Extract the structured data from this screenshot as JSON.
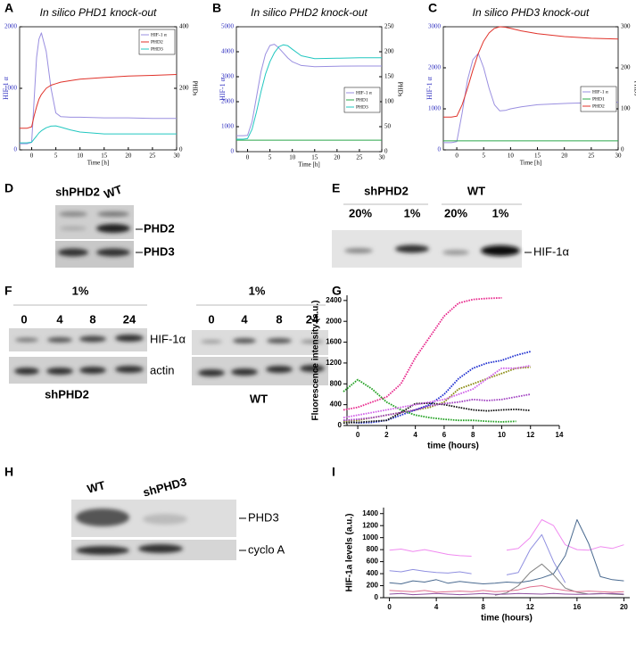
{
  "chart_data": [
    {
      "panel": "A",
      "type": "line",
      "title": "In silico PHD1 knock-out",
      "x_label": "Time [h]",
      "y_label": "HIF-1 α",
      "y2_label": "PHDs",
      "x": [
        -2.5,
        -1,
        0,
        0.5,
        1,
        1.5,
        2,
        3,
        4,
        5,
        6,
        8,
        10,
        15,
        20,
        25,
        30
      ],
      "xlim": [
        -2.5,
        30
      ],
      "xticks": [
        0,
        5,
        10,
        15,
        20,
        25,
        30
      ],
      "ylim": [
        0,
        2000
      ],
      "yticks": [
        0,
        1000,
        2000
      ],
      "y2lim": [
        0,
        400
      ],
      "y2ticks": [
        0,
        200,
        400
      ],
      "legend": "upper right",
      "series": [
        {
          "name": "HIF-1 α",
          "color": "#9a8fe0",
          "values": [
            100,
            100,
            120,
            800,
            1500,
            1800,
            1900,
            1600,
            1000,
            600,
            540,
            530,
            530,
            520,
            520,
            510,
            510
          ]
        },
        {
          "name": "PHD2",
          "color": "#e0322a",
          "axis": "y2",
          "values": [
            70,
            70,
            75,
            110,
            140,
            165,
            180,
            200,
            210,
            215,
            220,
            225,
            230,
            235,
            240,
            242,
            245
          ]
        },
        {
          "name": "PHD3",
          "color": "#22c7c0",
          "axis": "y2",
          "values": [
            23,
            23,
            25,
            35,
            45,
            55,
            62,
            72,
            77,
            78,
            74,
            65,
            58,
            52,
            52,
            52,
            52
          ]
        }
      ]
    },
    {
      "panel": "B",
      "type": "line",
      "title": "In silico PHD2 knock-out",
      "x_label": "Time [h]",
      "y_label": "HIF-1 α",
      "y2_label": "PHDs",
      "x": [
        -2.5,
        -1,
        0,
        1,
        2,
        3,
        4,
        5,
        6,
        7,
        8,
        9,
        10,
        12,
        15,
        20,
        25,
        30
      ],
      "xlim": [
        -2.5,
        30
      ],
      "xticks": [
        0,
        5,
        10,
        15,
        20,
        25,
        30
      ],
      "ylim": [
        0,
        5000
      ],
      "yticks": [
        0,
        1000,
        2000,
        3000,
        4000,
        5000
      ],
      "y2lim": [
        0,
        250
      ],
      "y2ticks": [
        0,
        50,
        100,
        150,
        200,
        250
      ],
      "legend": "center right",
      "series": [
        {
          "name": "HIF-1 α",
          "color": "#9a8fe0",
          "values": [
            640,
            640,
            650,
            1200,
            2200,
            3200,
            3900,
            4250,
            4300,
            4150,
            3950,
            3750,
            3600,
            3450,
            3400,
            3420,
            3430,
            3430
          ]
        },
        {
          "name": "PHD1",
          "color": "#2aa84a",
          "axis": "y2",
          "values": [
            23,
            23,
            23,
            23,
            23,
            23,
            23,
            23,
            23,
            23,
            23,
            23,
            23,
            23,
            23,
            23,
            23,
            23
          ]
        },
        {
          "name": "PHD3",
          "color": "#22c7c0",
          "axis": "y2",
          "values": [
            25,
            25,
            26,
            45,
            80,
            120,
            155,
            180,
            198,
            210,
            214,
            212,
            205,
            192,
            186,
            187,
            188,
            188
          ]
        }
      ]
    },
    {
      "panel": "C",
      "type": "line",
      "title": "In silico PHD3 knock-out",
      "x_label": "Time [h]",
      "y_label": "HIF-1 α",
      "y2_label": "PHDs",
      "x": [
        -2.5,
        -1,
        0,
        1,
        2,
        3,
        4,
        5,
        6,
        7,
        8,
        9,
        10,
        12,
        15,
        20,
        25,
        30
      ],
      "xlim": [
        -2.5,
        30
      ],
      "xticks": [
        0,
        5,
        10,
        15,
        20,
        25,
        30
      ],
      "ylim": [
        0,
        3000
      ],
      "yticks": [
        0,
        1000,
        2000,
        3000
      ],
      "y2lim": [
        0,
        300
      ],
      "y2ticks": [
        0,
        100,
        200,
        300
      ],
      "legend": "center right",
      "series": [
        {
          "name": "HIF-1 α",
          "color": "#9a8fe0",
          "values": [
            175,
            175,
            200,
            900,
            1700,
            2200,
            2350,
            2000,
            1500,
            1100,
            950,
            960,
            1000,
            1050,
            1100,
            1130,
            1150,
            1160
          ]
        },
        {
          "name": "PHD1",
          "color": "#2aa84a",
          "axis": "y2",
          "values": [
            22,
            22,
            22,
            22,
            22,
            22,
            22,
            22,
            22,
            22,
            22,
            22,
            22,
            22,
            22,
            22,
            22,
            22
          ]
        },
        {
          "name": "PHD2",
          "color": "#e0322a",
          "axis": "y2",
          "values": [
            80,
            80,
            82,
            110,
            150,
            195,
            235,
            265,
            285,
            296,
            300,
            299,
            296,
            290,
            283,
            276,
            272,
            270
          ]
        }
      ]
    },
    {
      "panel": "G",
      "type": "line",
      "x_label": "time (hours)",
      "y_label": "Fluorescence intensity (a.u.)",
      "line_style": "dotted",
      "x": [
        -1,
        0,
        1,
        2,
        3,
        4,
        5,
        6,
        7,
        8,
        9,
        10,
        11,
        12
      ],
      "xlim": [
        -0.75,
        14
      ],
      "xticks": [
        0,
        2,
        4,
        6,
        8,
        10,
        12,
        14
      ],
      "ylim": [
        0,
        2500
      ],
      "yticks": [
        0,
        400,
        800,
        1200,
        1600,
        2000,
        2400
      ],
      "series": [
        {
          "color": "#e8288c",
          "values": [
            300,
            350,
            450,
            550,
            800,
            1300,
            1700,
            2100,
            2350,
            2420,
            2440,
            2450,
            null,
            null
          ]
        },
        {
          "color": "#2030d0",
          "values": [
            100,
            50,
            60,
            100,
            200,
            300,
            400,
            600,
            900,
            1100,
            1200,
            1250,
            1350,
            1420
          ]
        },
        {
          "color": "#20a020",
          "values": [
            650,
            880,
            700,
            450,
            300,
            200,
            150,
            120,
            100,
            100,
            80,
            70,
            80,
            null
          ]
        },
        {
          "color": "#111111",
          "values": [
            50,
            60,
            80,
            100,
            250,
            420,
            430,
            400,
            350,
            300,
            280,
            300,
            310,
            290
          ]
        },
        {
          "color": "#8a8a10",
          "values": [
            80,
            100,
            150,
            200,
            250,
            300,
            350,
            450,
            700,
            800,
            900,
            1000,
            1100,
            1120
          ]
        },
        {
          "color": "#d060e8",
          "values": [
            150,
            200,
            250,
            300,
            350,
            400,
            450,
            500,
            600,
            700,
            900,
            1100,
            1100,
            1150
          ]
        },
        {
          "color": "#a040c0",
          "values": [
            100,
            120,
            150,
            200,
            250,
            300,
            380,
            420,
            450,
            500,
            480,
            500,
            550,
            600
          ]
        }
      ]
    },
    {
      "panel": "I",
      "type": "line",
      "x_label": "time (hours)",
      "y_label": "HIF-1a levels (a.u.)",
      "line_style": "solid",
      "x": [
        0,
        1,
        2,
        3,
        4,
        5,
        6,
        7,
        8,
        9,
        10,
        11,
        12,
        13,
        14,
        15,
        16,
        17,
        18,
        19,
        20
      ],
      "xlim": [
        -0.5,
        20.5
      ],
      "xticks": [
        0,
        4,
        8,
        12,
        16,
        20
      ],
      "ylim": [
        0,
        1500
      ],
      "yticks": [
        0,
        200,
        400,
        600,
        800,
        1000,
        1200,
        1400
      ],
      "series": [
        {
          "color": "#f08af0",
          "values": [
            790,
            810,
            770,
            800,
            760,
            720,
            700,
            690,
            null,
            null,
            790,
            820,
            1000,
            1300,
            1200,
            880,
            800,
            790,
            850,
            820,
            880
          ]
        },
        {
          "color": "#9090e0",
          "values": [
            450,
            430,
            470,
            440,
            420,
            410,
            430,
            400,
            null,
            null,
            380,
            420,
            800,
            1050,
            600,
            250,
            null,
            null,
            null,
            null,
            null
          ]
        },
        {
          "color": "#4a6a90",
          "values": [
            250,
            230,
            280,
            260,
            300,
            240,
            270,
            250,
            230,
            240,
            260,
            250,
            280,
            330,
            400,
            700,
            1300,
            900,
            350,
            300,
            280
          ]
        },
        {
          "color": "#808080",
          "values": [
            null,
            null,
            null,
            null,
            null,
            null,
            null,
            null,
            null,
            40,
            80,
            200,
            420,
            560,
            380,
            160,
            90,
            60,
            70,
            60,
            50
          ]
        },
        {
          "color": "#9050a0",
          "values": [
            60,
            70,
            50,
            60,
            70,
            60,
            50,
            60,
            70,
            55,
            60,
            70,
            65,
            60,
            70,
            60,
            55,
            60,
            65,
            70,
            60
          ]
        },
        {
          "color": "#e07090",
          "values": [
            120,
            110,
            100,
            120,
            90,
            100,
            110,
            100,
            120,
            100,
            110,
            130,
            180,
            200,
            150,
            120,
            100,
            110,
            100,
            90,
            100
          ]
        }
      ]
    }
  ],
  "blots": [
    {
      "panel": "D",
      "lanes": [
        "shPHD2",
        "WT"
      ],
      "bands": [
        "PHD2",
        "PHD3"
      ]
    },
    {
      "panel": "E",
      "groups": [
        "shPHD2",
        "WT"
      ],
      "lanes": [
        "20%",
        "1%",
        "20%",
        "1%"
      ],
      "bands": [
        "HIF-1α"
      ]
    },
    {
      "panel": "F",
      "blots": [
        {
          "condition": "1%",
          "lanes": [
            "0",
            "4",
            "8",
            "24"
          ],
          "bands": [
            "HIF-1α",
            "actin"
          ],
          "cell_line": "shPHD2"
        },
        {
          "condition": "1%",
          "lanes": [
            "0",
            "4",
            "8",
            "24"
          ],
          "cell_line": "WT"
        }
      ]
    },
    {
      "panel": "H",
      "lanes": [
        "WT",
        "shPHD3"
      ],
      "bands": [
        "PHD3",
        "cyclo A"
      ]
    }
  ]
}
